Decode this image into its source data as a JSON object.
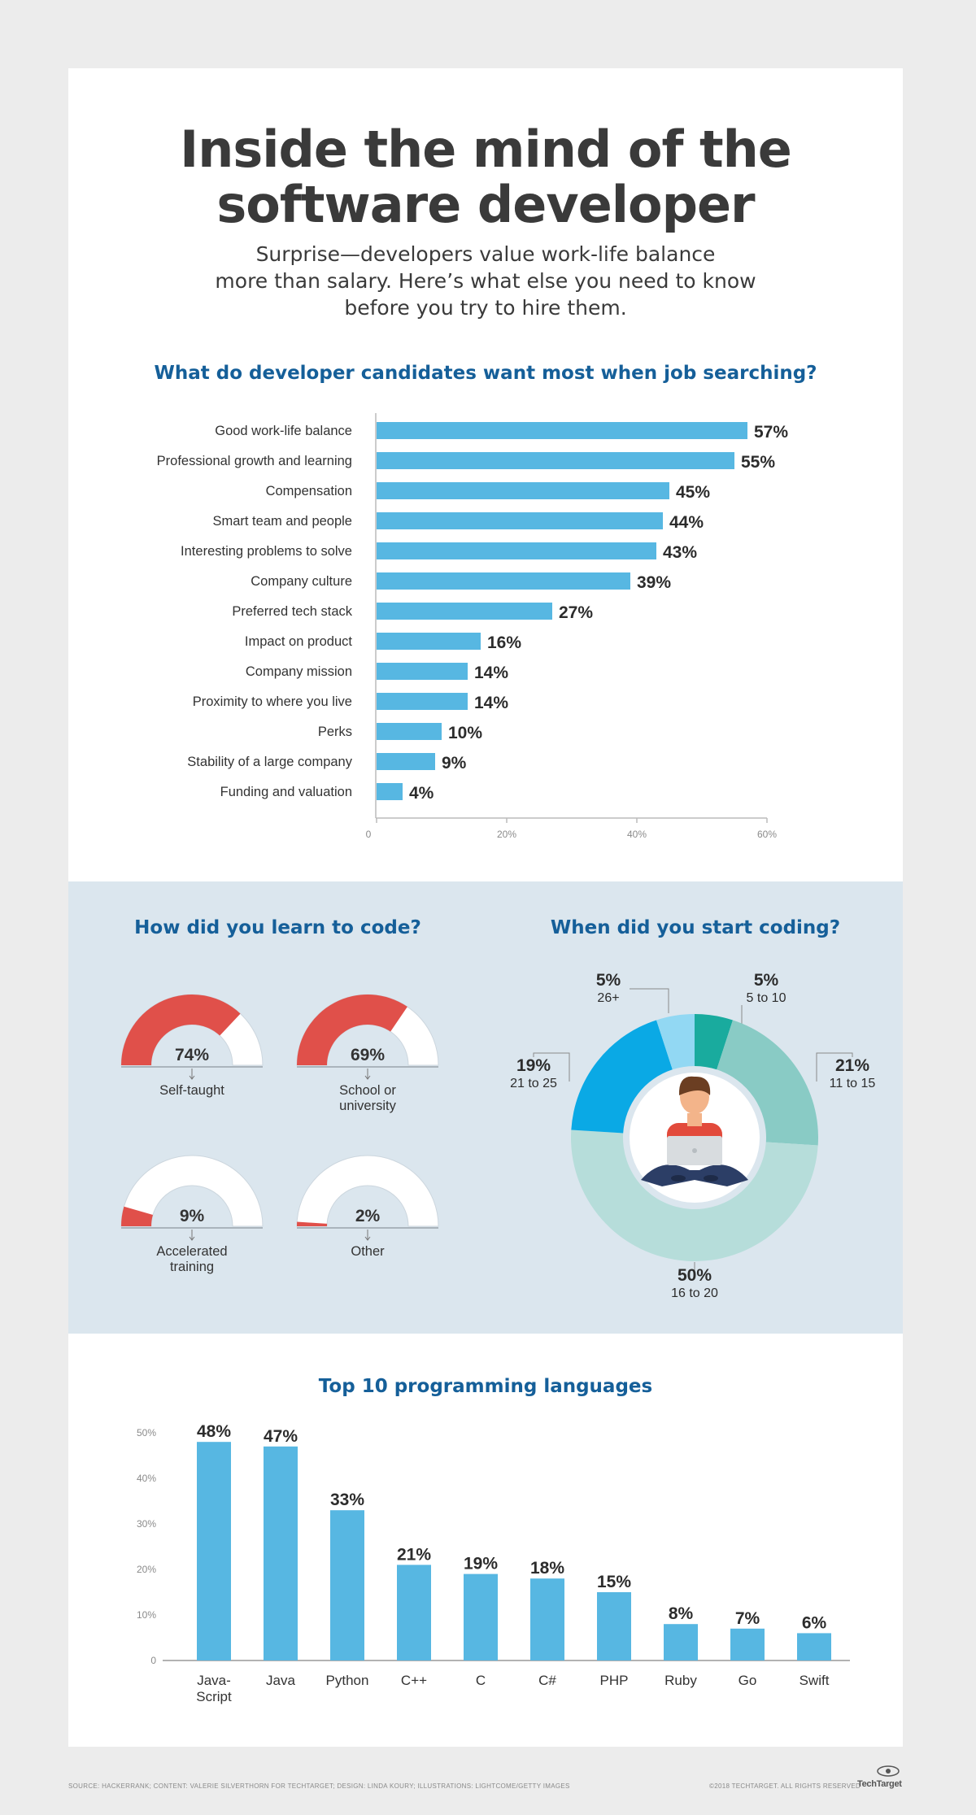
{
  "header": {
    "title_line1": "Inside the mind of the",
    "title_line2": "software developer",
    "subtitle_line1": "Surprise—developers value work-life balance",
    "subtitle_line2": "more than salary. Here’s what else you need to know",
    "subtitle_line3": "before you try to hire them."
  },
  "colors": {
    "bar": "#57b7e2",
    "gauge_fill": "#e0504a",
    "gauge_track": "#ffffff",
    "heading": "#155f99",
    "band": "#dbe6ee"
  },
  "chart_data": [
    {
      "type": "bar",
      "orientation": "horizontal",
      "title": "What do developer candidates want most when job searching?",
      "categories": [
        "Good work-life balance",
        "Professional growth and learning",
        "Compensation",
        "Smart team and people",
        "Interesting problems to solve",
        "Company culture",
        "Preferred tech stack",
        "Impact on product",
        "Company mission",
        "Proximity to where you live",
        "Perks",
        "Stability of a large company",
        "Funding and valuation"
      ],
      "values": [
        57,
        55,
        45,
        44,
        43,
        39,
        27,
        16,
        14,
        14,
        10,
        9,
        4
      ],
      "value_labels": [
        "57%",
        "55%",
        "45%",
        "44%",
        "43%",
        "39%",
        "27%",
        "16%",
        "14%",
        "14%",
        "10%",
        "9%",
        "4%"
      ],
      "xlim": [
        0,
        60
      ],
      "x_ticks": [
        0,
        20,
        40,
        60
      ],
      "x_tick_labels": [
        "0",
        "20%",
        "40%",
        "60%"
      ],
      "grid": false
    },
    {
      "type": "gauge",
      "title": "How did you learn to code?",
      "items": [
        {
          "label_line1": "Self-taught",
          "label_line2": "",
          "value": 74,
          "value_label": "74%"
        },
        {
          "label_line1": "School or",
          "label_line2": "university",
          "value": 69,
          "value_label": "69%"
        },
        {
          "label_line1": "Accelerated",
          "label_line2": "training",
          "value": 9,
          "value_label": "9%"
        },
        {
          "label_line1": "Other",
          "label_line2": "",
          "value": 2,
          "value_label": "2%"
        }
      ]
    },
    {
      "type": "pie",
      "variant": "donut",
      "title": "When did you start coding?",
      "slices": [
        {
          "label": "5 to 10",
          "value": 5,
          "value_label": "5%",
          "color": "#19ab9e"
        },
        {
          "label": "11 to 15",
          "value": 21,
          "value_label": "21%",
          "color": "#89cbc5"
        },
        {
          "label": "16 to 20",
          "value": 50,
          "value_label": "50%",
          "color": "#b6ddda"
        },
        {
          "label": "21 to 25",
          "value": 19,
          "value_label": "19%",
          "color": "#0aa9e5"
        },
        {
          "label": "26+",
          "value": 5,
          "value_label": "5%",
          "color": "#92d8f3"
        }
      ]
    },
    {
      "type": "bar",
      "orientation": "vertical",
      "title": "Top 10 programming languages",
      "categories": [
        "Java-Script",
        "Java",
        "Python",
        "C++",
        "C",
        "C#",
        "PHP",
        "Ruby",
        "Go",
        "Swift"
      ],
      "category_lines": [
        [
          "Java-",
          "Script"
        ],
        [
          "Java"
        ],
        [
          "Python"
        ],
        [
          "C++"
        ],
        [
          "C"
        ],
        [
          "C#"
        ],
        [
          "PHP"
        ],
        [
          "Ruby"
        ],
        [
          "Go"
        ],
        [
          "Swift"
        ]
      ],
      "values": [
        48,
        47,
        33,
        21,
        19,
        18,
        15,
        8,
        7,
        6
      ],
      "value_labels": [
        "48%",
        "47%",
        "33%",
        "21%",
        "19%",
        "18%",
        "15%",
        "8%",
        "7%",
        "6%"
      ],
      "ylim": [
        0,
        50
      ],
      "y_ticks": [
        0,
        10,
        20,
        30,
        40,
        50
      ],
      "y_tick_labels": [
        "0",
        "10%",
        "20%",
        "30%",
        "40%",
        "50%"
      ],
      "grid": false
    }
  ],
  "footer": {
    "source": "SOURCE: HACKERRANK; CONTENT: VALERIE SILVERTHORN FOR TECHTARGET; DESIGN: LINDA KOURY; ILLUSTRATIONS: LIGHTCOME/GETTY IMAGES",
    "copyright": "©2018 TECHTARGET. ALL RIGHTS RESERVED",
    "logo_text": "TechTarget"
  }
}
